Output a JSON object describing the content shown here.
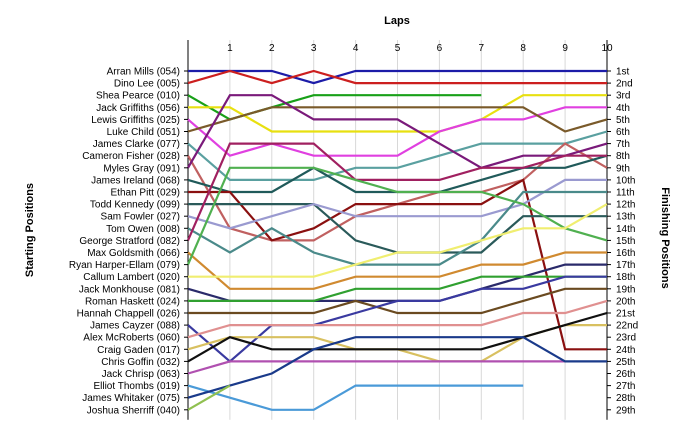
{
  "chart_data": {
    "type": "line",
    "title": "",
    "xlabel": "Laps",
    "ylabel": "Starting Positions",
    "y2label": "Finishing Positions",
    "x": [
      0,
      1,
      2,
      3,
      4,
      5,
      6,
      7,
      8,
      9,
      10
    ],
    "x_tick_labels": [
      "1",
      "2",
      "3",
      "4",
      "5",
      "6",
      "7",
      "8",
      "9",
      "10"
    ],
    "y_range": [
      1,
      29
    ],
    "grid_x": true,
    "start_labels": [
      "Arran Mills (054)",
      "Dino Lee (005)",
      "Shea Pearce (010)",
      "Jack Griffiths (056)",
      "Lewis Griffiths (025)",
      "Luke Child (051)",
      "James Clarke (077)",
      "Cameron Fisher (028)",
      "Myles Gray (091)",
      "James Ireland (068)",
      "Ethan Pitt (029)",
      "Todd Kennedy (099)",
      "Sam Fowler (027)",
      "Tom Owen (008)",
      "George Stratford (082)",
      "Max Goldsmith (066)",
      "Ryan Harper-Ellam (079)",
      "Callum Lambert (020)",
      "Jack Monkhouse (081)",
      "Roman Haskett (024)",
      "Hannah Chappell (026)",
      "James Cayzer (088)",
      "Alex McRoberts (060)",
      "Craig Gaden (017)",
      "Chris Goffin (032)",
      "Jack Chrisp (063)",
      "Elliot Thombs (019)",
      "James Whitaker (075)",
      "Joshua Sherriff (040)"
    ],
    "finish_labels": [
      "1st",
      "2nd",
      "3rd",
      "4th",
      "5th",
      "6th",
      "7th",
      "8th",
      "9th",
      "10th",
      "11th",
      "12th",
      "13th",
      "14th",
      "15th",
      "16th",
      "17th",
      "18th",
      "19th",
      "20th",
      "21st",
      "22nd",
      "23rd",
      "24th",
      "25th",
      "26th",
      "27th",
      "28th",
      "29th"
    ],
    "series": [
      {
        "color": "#1c1ca8",
        "values": [
          1,
          1,
          1,
          2,
          1,
          1,
          1,
          1,
          1,
          1,
          1
        ]
      },
      {
        "color": "#cc1f1f",
        "values": [
          2,
          1,
          2,
          1,
          2,
          2,
          2,
          2,
          2,
          2,
          2
        ]
      },
      {
        "color": "#18a018",
        "values": [
          3,
          5,
          4,
          3,
          3,
          3,
          3,
          3,
          null,
          null,
          null
        ]
      },
      {
        "color": "#e8e010",
        "values": [
          4,
          4,
          6,
          6,
          6,
          6,
          6,
          5,
          3,
          3,
          3
        ]
      },
      {
        "color": "#e040e0",
        "values": [
          5,
          8,
          7,
          8,
          8,
          8,
          6,
          5,
          5,
          4,
          4
        ]
      },
      {
        "color": "#7a5a2a",
        "values": [
          6,
          5,
          4,
          4,
          4,
          4,
          4,
          4,
          4,
          6,
          5
        ]
      },
      {
        "color": "#5aa0a0",
        "values": [
          7,
          10,
          10,
          10,
          9,
          9,
          8,
          7,
          7,
          7,
          6
        ]
      },
      {
        "color": "#c06060",
        "values": [
          8,
          14,
          15,
          15,
          13,
          12,
          11,
          11,
          10,
          7,
          9
        ]
      },
      {
        "color": "#7a1a7a",
        "values": [
          9,
          3,
          3,
          5,
          5,
          5,
          7,
          9,
          8,
          8,
          7
        ]
      },
      {
        "color": "#205a5a",
        "values": [
          10,
          11,
          11,
          9,
          11,
          11,
          11,
          10,
          9,
          9,
          8
        ]
      },
      {
        "color": "#8a1010",
        "values": [
          11,
          11,
          15,
          14,
          12,
          12,
          12,
          12,
          10,
          24,
          24
        ]
      },
      {
        "color": "#2a5a5a",
        "values": [
          12,
          12,
          12,
          12,
          15,
          16,
          16,
          16,
          13,
          13,
          13
        ]
      },
      {
        "color": "#9a9ad0",
        "values": [
          13,
          14,
          13,
          12,
          13,
          13,
          13,
          13,
          12,
          10,
          10
        ]
      },
      {
        "color": "#4a8a8a",
        "values": [
          14,
          16,
          14,
          16,
          17,
          17,
          17,
          15,
          11,
          11,
          11
        ]
      },
      {
        "color": "#a02060",
        "values": [
          15,
          7,
          7,
          7,
          10,
          10,
          10,
          9,
          9,
          8,
          8
        ]
      },
      {
        "color": "#d08a30",
        "values": [
          16,
          19,
          19,
          19,
          18,
          18,
          18,
          17,
          17,
          16,
          16
        ]
      },
      {
        "color": "#50b050",
        "values": [
          17,
          9,
          9,
          9,
          10,
          11,
          11,
          11,
          12,
          14,
          15
        ]
      },
      {
        "color": "#f0ee70",
        "values": [
          18,
          18,
          18,
          18,
          17,
          16,
          16,
          15,
          14,
          14,
          12
        ]
      },
      {
        "color": "#2a2a6a",
        "values": [
          19,
          20,
          20,
          20,
          20,
          20,
          20,
          19,
          18,
          17,
          17
        ]
      },
      {
        "color": "#30a030",
        "values": [
          20,
          20,
          20,
          20,
          19,
          19,
          19,
          18,
          18,
          18,
          18
        ]
      },
      {
        "color": "#6a4a20",
        "values": [
          21,
          21,
          21,
          21,
          20,
          21,
          21,
          21,
          20,
          19,
          19
        ]
      },
      {
        "color": "#3a3aa0",
        "values": [
          22,
          25,
          22,
          22,
          21,
          20,
          20,
          19,
          19,
          18,
          18
        ]
      },
      {
        "color": "#e09090",
        "values": [
          23,
          22,
          22,
          22,
          22,
          22,
          22,
          22,
          21,
          21,
          20
        ]
      },
      {
        "color": "#d8c060",
        "values": [
          24,
          23,
          23,
          23,
          24,
          24,
          25,
          25,
          23,
          22,
          22
        ]
      },
      {
        "color": "#101010",
        "values": [
          25,
          23,
          24,
          24,
          24,
          24,
          24,
          24,
          23,
          22,
          21
        ]
      },
      {
        "color": "#b050b0",
        "values": [
          26,
          25,
          25,
          25,
          25,
          25,
          25,
          25,
          25,
          25,
          null
        ]
      },
      {
        "color": "#4a9ad8",
        "values": [
          27,
          28,
          29,
          29,
          27,
          27,
          27,
          27,
          27,
          null,
          null
        ]
      },
      {
        "color": "#1a3a8a",
        "values": [
          28,
          27,
          26,
          24,
          23,
          23,
          23,
          23,
          23,
          25,
          25
        ]
      },
      {
        "color": "#90c050",
        "values": [
          29,
          27,
          null,
          null,
          null,
          null,
          null,
          null,
          null,
          null,
          null
        ]
      }
    ]
  }
}
